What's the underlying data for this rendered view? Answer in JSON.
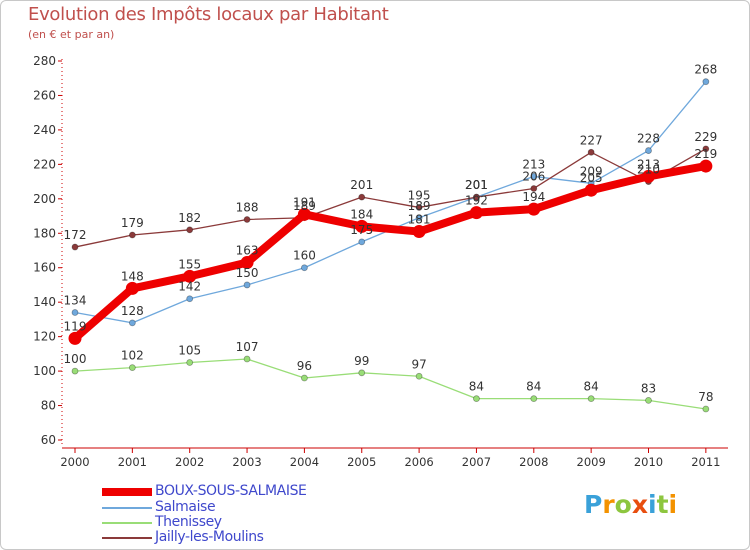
{
  "header": {
    "title": "Evolution des Impôts locaux par Habitant",
    "subtitle": "(en € et par an)"
  },
  "logo": {
    "letters": [
      "P",
      "r",
      "o",
      "x",
      "i",
      "t",
      "i"
    ],
    "colors": [
      "#3aa1d9",
      "#f39200",
      "#8dc63f",
      "#e84e0f",
      "#3aa1d9",
      "#8dc63f",
      "#f39200"
    ]
  },
  "chart_data": {
    "type": "line",
    "title": "Evolution des Impôts locaux par Habitant",
    "subtitle": "(en € et par an)",
    "xlabel": "",
    "ylabel": "",
    "ylim": [
      60,
      280
    ],
    "yticks": [
      60,
      80,
      100,
      120,
      140,
      160,
      180,
      200,
      220,
      240,
      260,
      280
    ],
    "categories": [
      "2000",
      "2001",
      "2002",
      "2003",
      "2004",
      "2005",
      "2006",
      "2007",
      "2008",
      "2009",
      "2010",
      "2011"
    ],
    "grid": false,
    "legend_position": "bottom-left",
    "series": [
      {
        "name": "Salmaise",
        "color": "#6fa8dc",
        "width": 1.3,
        "values": [
          134,
          128,
          142,
          150,
          160,
          175,
          189,
          201,
          213,
          209,
          228,
          268
        ],
        "labels": [
          "134",
          "128",
          "142",
          "150",
          "160",
          "175",
          "189",
          "201",
          "213",
          "209",
          "228",
          "268"
        ]
      },
      {
        "name": "Thenissey",
        "color": "#99dd77",
        "width": 1.3,
        "values": [
          100,
          102,
          105,
          107,
          96,
          99,
          97,
          84,
          84,
          84,
          83,
          78
        ],
        "labels": [
          "100",
          "102",
          "105",
          "107",
          "96",
          "99",
          "97",
          "84",
          "84",
          "84",
          "83",
          "78"
        ]
      },
      {
        "name": "Jailly-les-Moulins",
        "color": "#8b3a3a",
        "width": 1.3,
        "values": [
          172,
          179,
          182,
          188,
          189,
          201,
          195,
          201,
          206,
          227,
          210,
          229
        ],
        "labels": [
          "172",
          "179",
          "182",
          "188",
          "189",
          "201",
          "195",
          "201",
          "206",
          "227",
          "210",
          "229"
        ]
      },
      {
        "name": "BOUX-SOUS-SALMAISE",
        "color": "#ee0000",
        "width": 8,
        "values": [
          119,
          148,
          155,
          163,
          191,
          184,
          181,
          192,
          194,
          205,
          213,
          219
        ],
        "labels": [
          "119",
          "148",
          "155",
          "163",
          "191",
          "184",
          "181",
          "192",
          "194",
          "205",
          "213",
          "219"
        ]
      }
    ],
    "legend": [
      "BOUX-SOUS-SALMAISE",
      "Salmaise",
      "Thenissey",
      "Jailly-les-Moulins"
    ]
  }
}
